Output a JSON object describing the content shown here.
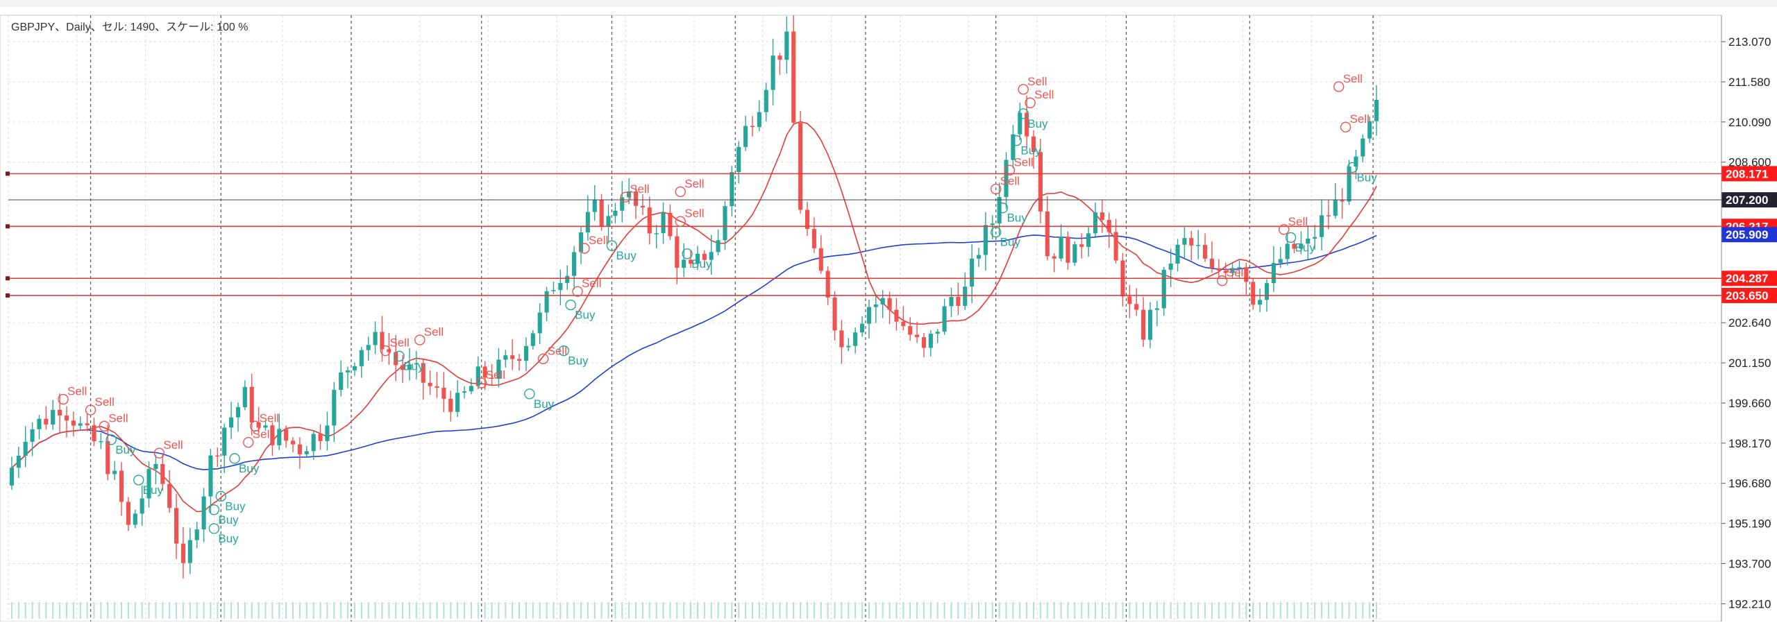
{
  "header_label": "GBPJPY、Daily、セル: 1490、スケール: 100 %",
  "colors": {
    "bull": "#26a69a",
    "bear": "#ef5350",
    "ma_fast": "#e53935",
    "ma_slow": "#1e3fd6",
    "hline": "#e53935",
    "price_line": "#555566",
    "grid": "#d9d9d9",
    "session_sep": "#555555",
    "volume": "#b2dfdb",
    "buy_text": "#26a69a",
    "sell_text": "#ef5350"
  },
  "chart_data": {
    "type": "candlestick",
    "symbol": "GBPJPY",
    "timeframe": "Daily",
    "x_range": [
      0,
      200
    ],
    "ylim": [
      191.55,
      214.05
    ],
    "y_ticks": [
      "213.070",
      "211.580",
      "210.090",
      "208.600",
      "207.200",
      "206.217",
      "205.909",
      "204.287",
      "203.650",
      "202.640",
      "201.150",
      "199.660",
      "198.170",
      "196.680",
      "195.190",
      "193.700",
      "192.210"
    ],
    "y_tick_values": [
      213.07,
      211.58,
      210.09,
      208.6,
      207.2,
      206.217,
      205.909,
      204.287,
      203.65,
      202.64,
      201.15,
      199.66,
      198.17,
      196.68,
      195.19,
      193.7,
      192.21
    ],
    "horizontal_levels": [
      {
        "value": 208.171,
        "label": "208.171",
        "kind": "level"
      },
      {
        "value": 206.217,
        "label": "206.217",
        "kind": "level"
      },
      {
        "value": 204.287,
        "label": "204.287",
        "kind": "level"
      },
      {
        "value": 203.65,
        "label": "203.650",
        "kind": "level"
      }
    ],
    "current_price": {
      "value": 207.2,
      "label": "207.200"
    },
    "ma_slow_last": {
      "value": 205.909,
      "label": "205.909"
    },
    "anchors": [
      [
        0,
        196.6
      ],
      [
        3,
        198.6
      ],
      [
        6,
        199.1
      ],
      [
        8,
        199.6
      ],
      [
        10,
        199.1
      ],
      [
        12,
        198.4
      ],
      [
        14,
        198.0
      ],
      [
        16,
        196.8
      ],
      [
        18,
        195.0
      ],
      [
        20,
        196.2
      ],
      [
        22,
        197.4
      ],
      [
        24,
        196.0
      ],
      [
        26,
        193.3
      ],
      [
        28,
        195.4
      ],
      [
        30,
        197.5
      ],
      [
        32,
        198.8
      ],
      [
        35,
        199.9
      ],
      [
        37,
        198.6
      ],
      [
        40,
        198.4
      ],
      [
        43,
        198.0
      ],
      [
        46,
        198.6
      ],
      [
        49,
        200.6
      ],
      [
        52,
        201.8
      ],
      [
        55,
        202.0
      ],
      [
        57,
        201.1
      ],
      [
        60,
        200.7
      ],
      [
        63,
        200.0
      ],
      [
        66,
        199.6
      ],
      [
        69,
        200.6
      ],
      [
        72,
        200.9
      ],
      [
        75,
        201.6
      ],
      [
        78,
        202.8
      ],
      [
        80,
        204.1
      ],
      [
        82,
        204.8
      ],
      [
        84,
        206.0
      ],
      [
        86,
        206.8
      ],
      [
        88,
        206.4
      ],
      [
        90,
        207.6
      ],
      [
        92,
        206.9
      ],
      [
        94,
        206.1
      ],
      [
        96,
        206.5
      ],
      [
        98,
        205.0
      ],
      [
        100,
        204.5
      ],
      [
        102,
        205.2
      ],
      [
        104,
        205.6
      ],
      [
        106,
        208.4
      ],
      [
        108,
        209.8
      ],
      [
        110,
        210.9
      ],
      [
        112,
        212.4
      ],
      [
        114,
        213.0
      ],
      [
        115,
        210.0
      ],
      [
        116,
        207.0
      ],
      [
        118,
        205.0
      ],
      [
        120,
        203.8
      ],
      [
        122,
        201.7
      ],
      [
        124,
        202.6
      ],
      [
        126,
        203.3
      ],
      [
        128,
        203.4
      ],
      [
        130,
        202.9
      ],
      [
        132,
        202.2
      ],
      [
        134,
        201.5
      ],
      [
        136,
        202.5
      ],
      [
        138,
        203.6
      ],
      [
        140,
        203.8
      ],
      [
        142,
        205.4
      ],
      [
        144,
        206.4
      ],
      [
        145,
        207.6
      ],
      [
        146,
        208.6
      ],
      [
        147,
        210.0
      ],
      [
        148,
        210.8
      ],
      [
        150,
        209.2
      ],
      [
        151,
        207.0
      ],
      [
        152,
        205.2
      ],
      [
        154,
        205.5
      ],
      [
        156,
        205.1
      ],
      [
        158,
        206.3
      ],
      [
        159,
        207.1
      ],
      [
        160,
        206.4
      ],
      [
        162,
        204.8
      ],
      [
        164,
        203.1
      ],
      [
        166,
        202.3
      ],
      [
        168,
        203.4
      ],
      [
        170,
        205.0
      ],
      [
        172,
        205.6
      ],
      [
        174,
        205.3
      ],
      [
        176,
        204.4
      ],
      [
        178,
        204.8
      ],
      [
        180,
        205.0
      ],
      [
        182,
        203.6
      ],
      [
        184,
        204.1
      ],
      [
        186,
        205.0
      ],
      [
        188,
        205.4
      ],
      [
        190,
        205.5
      ],
      [
        192,
        206.4
      ],
      [
        194,
        207.0
      ],
      [
        196,
        208.0
      ],
      [
        198,
        209.1
      ],
      [
        200,
        210.6
      ]
    ],
    "signals": [
      {
        "x": 8,
        "y": 199.8,
        "label": "Sell",
        "type": "sell"
      },
      {
        "x": 12,
        "y": 199.4,
        "label": "Sell",
        "type": "sell"
      },
      {
        "x": 14,
        "y": 198.8,
        "label": "Sell",
        "type": "sell"
      },
      {
        "x": 15,
        "y": 198.3,
        "label": "Buy",
        "type": "buy"
      },
      {
        "x": 19,
        "y": 196.8,
        "label": "Buy",
        "type": "buy"
      },
      {
        "x": 22,
        "y": 197.8,
        "label": "Sell",
        "type": "sell"
      },
      {
        "x": 30,
        "y": 195.7,
        "label": "Buy",
        "type": "buy"
      },
      {
        "x": 30,
        "y": 195.0,
        "label": "Buy",
        "type": "buy"
      },
      {
        "x": 31,
        "y": 196.2,
        "label": "Buy",
        "type": "buy"
      },
      {
        "x": 33,
        "y": 197.6,
        "label": "Buy",
        "type": "buy"
      },
      {
        "x": 35,
        "y": 198.2,
        "label": "Sell",
        "type": "sell"
      },
      {
        "x": 36,
        "y": 198.8,
        "label": "Sell",
        "type": "sell"
      },
      {
        "x": 55,
        "y": 201.6,
        "label": "Sell",
        "type": "sell"
      },
      {
        "x": 57,
        "y": 201.4,
        "label": "Buy",
        "type": "buy"
      },
      {
        "x": 60,
        "y": 202.0,
        "label": "Sell",
        "type": "sell"
      },
      {
        "x": 69,
        "y": 200.4,
        "label": "Sell",
        "type": "sell"
      },
      {
        "x": 76,
        "y": 200.0,
        "label": "Buy",
        "type": "buy"
      },
      {
        "x": 78,
        "y": 201.3,
        "label": "Sell",
        "type": "sell"
      },
      {
        "x": 81,
        "y": 201.6,
        "label": "Buy",
        "type": "buy"
      },
      {
        "x": 82,
        "y": 203.3,
        "label": "Buy",
        "type": "buy"
      },
      {
        "x": 83,
        "y": 203.8,
        "label": "Sell",
        "type": "sell"
      },
      {
        "x": 84,
        "y": 205.4,
        "label": "Sell",
        "type": "sell"
      },
      {
        "x": 88,
        "y": 205.5,
        "label": "Buy",
        "type": "buy"
      },
      {
        "x": 90,
        "y": 207.3,
        "label": "Sell",
        "type": "sell"
      },
      {
        "x": 98,
        "y": 207.5,
        "label": "Sell",
        "type": "sell"
      },
      {
        "x": 98,
        "y": 206.4,
        "label": "Sell",
        "type": "sell"
      },
      {
        "x": 99,
        "y": 205.2,
        "label": "Buy",
        "type": "buy"
      },
      {
        "x": 144,
        "y": 207.6,
        "label": "Sell",
        "type": "sell"
      },
      {
        "x": 145,
        "y": 206.9,
        "label": "Buy",
        "type": "buy"
      },
      {
        "x": 144,
        "y": 206.0,
        "label": "Buy",
        "type": "buy"
      },
      {
        "x": 146,
        "y": 208.3,
        "label": "Sell",
        "type": "sell"
      },
      {
        "x": 147,
        "y": 209.4,
        "label": "Buy",
        "type": "buy"
      },
      {
        "x": 148,
        "y": 210.4,
        "label": "Buy",
        "type": "buy"
      },
      {
        "x": 148,
        "y": 211.3,
        "label": "Sell",
        "type": "sell"
      },
      {
        "x": 149,
        "y": 210.8,
        "label": "Sell",
        "type": "sell"
      },
      {
        "x": 177,
        "y": 204.2,
        "label": "Sell",
        "type": "sell"
      },
      {
        "x": 186,
        "y": 206.1,
        "label": "Sell",
        "type": "sell"
      },
      {
        "x": 187,
        "y": 205.8,
        "label": "Buy",
        "type": "buy"
      },
      {
        "x": 194,
        "y": 211.4,
        "label": "Sell",
        "type": "sell"
      },
      {
        "x": 195,
        "y": 209.9,
        "label": "Sell",
        "type": "sell"
      },
      {
        "x": 196,
        "y": 208.4,
        "label": "Buy",
        "type": "buy"
      }
    ],
    "grid": true,
    "legend": "none"
  }
}
